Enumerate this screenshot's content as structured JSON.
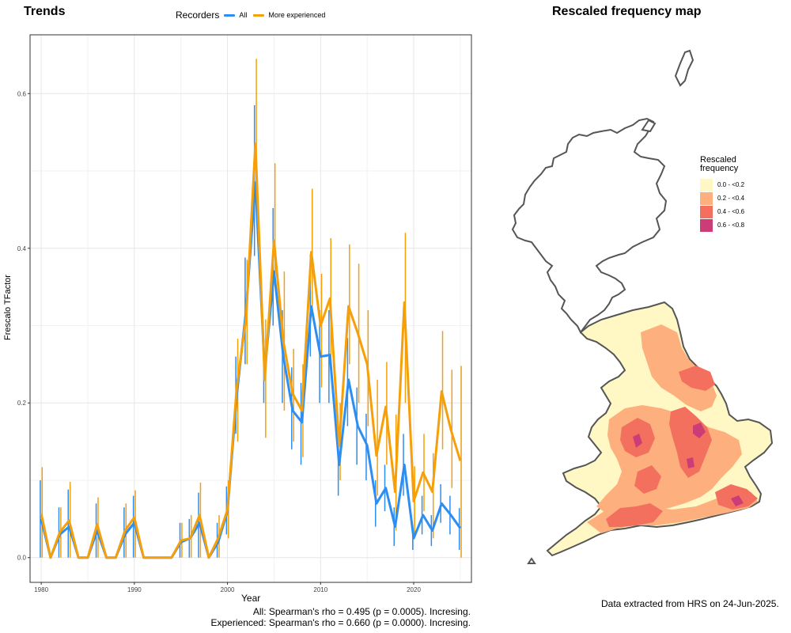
{
  "titles": {
    "left": "Trends",
    "right": "Rescaled frequency map"
  },
  "legend": {
    "title": "Recorders",
    "items": [
      {
        "label": "All",
        "color": "#2e8ef0"
      },
      {
        "label": "More experienced",
        "color": "#f5a00a"
      }
    ]
  },
  "axes": {
    "xlabel": "Year",
    "ylabel": "Frescalo TFactor"
  },
  "stats": {
    "all": "All: Spearman's rho = 0.495 (p = 0.0005). Incresing.",
    "experienced": "Experienced: Spearman's rho = 0.660 (p = 0.0000). Incresing."
  },
  "source_note": "Data extracted from HRS on 24-Jun-2025.",
  "map_legend": {
    "title": "Rescaled frequency",
    "items": [
      {
        "label": "0.0 - <0.2",
        "color": "#fff8c4"
      },
      {
        "label": "0.2 - <0.4",
        "color": "#fdb07e"
      },
      {
        "label": "0.4 - <0.6",
        "color": "#f3705f"
      },
      {
        "label": "0.6 - <0.8",
        "color": "#cc3d78"
      }
    ]
  },
  "chart_data": {
    "type": "line",
    "xlabel": "Year",
    "ylabel": "Frescalo TFactor",
    "xlim": [
      1978.8,
      2026.2
    ],
    "ylim": [
      -0.032,
      0.676
    ],
    "xticks": [
      1980,
      1990,
      2000,
      2010,
      2020
    ],
    "yticks": [
      0.0,
      0.2,
      0.4,
      0.6
    ],
    "ytick_labels": [
      "0.0",
      "0.2",
      "0.4",
      "0.6"
    ],
    "grid": true,
    "legend_position": "top",
    "x": [
      1980,
      1981,
      1982,
      1983,
      1984,
      1985,
      1986,
      1987,
      1988,
      1989,
      1990,
      1991,
      1992,
      1993,
      1994,
      1995,
      1996,
      1997,
      1998,
      1999,
      2000,
      2001,
      2002,
      2003,
      2004,
      2005,
      2006,
      2007,
      2008,
      2009,
      2010,
      2011,
      2012,
      2013,
      2014,
      2015,
      2016,
      2017,
      2018,
      2019,
      2020,
      2021,
      2022,
      2023,
      2024,
      2025
    ],
    "series": [
      {
        "name": "All",
        "color": "#2e8ef0",
        "values": [
          0.05,
          0.0,
          0.03,
          0.04,
          0.0,
          0.0,
          0.035,
          0.0,
          0.0,
          0.03,
          0.045,
          0.0,
          0.0,
          0.0,
          0.0,
          0.02,
          0.025,
          0.045,
          0.0,
          0.02,
          0.06,
          0.21,
          0.32,
          0.485,
          0.24,
          0.37,
          0.26,
          0.19,
          0.175,
          0.325,
          0.26,
          0.262,
          0.12,
          0.23,
          0.17,
          0.145,
          0.07,
          0.09,
          0.04,
          0.12,
          0.025,
          0.055,
          0.035,
          0.07,
          0.055,
          0.038
        ],
        "ci_low": [
          0.0,
          0.0,
          0.0,
          0.0,
          0.0,
          0.0,
          0.0,
          0.0,
          0.0,
          0.0,
          0.0,
          0.0,
          0.0,
          0.0,
          0.0,
          0.0,
          0.0,
          0.0,
          0.0,
          0.0,
          0.03,
          0.16,
          0.25,
          0.39,
          0.2,
          0.3,
          0.2,
          0.14,
          0.12,
          0.26,
          0.2,
          0.2,
          0.08,
          0.17,
          0.12,
          0.1,
          0.04,
          0.06,
          0.015,
          0.08,
          0.01,
          0.03,
          0.015,
          0.045,
          0.03,
          0.01
        ],
        "ci_high": [
          0.1,
          0.0,
          0.065,
          0.088,
          0.0,
          0.0,
          0.07,
          0.0,
          0.0,
          0.065,
          0.08,
          0.0,
          0.0,
          0.0,
          0.0,
          0.045,
          0.05,
          0.084,
          0.0,
          0.045,
          0.092,
          0.26,
          0.388,
          0.585,
          0.28,
          0.452,
          0.32,
          0.246,
          0.226,
          0.392,
          0.32,
          0.32,
          0.16,
          0.284,
          0.22,
          0.186,
          0.1,
          0.12,
          0.065,
          0.16,
          0.04,
          0.08,
          0.055,
          0.095,
          0.08,
          0.064
        ]
      },
      {
        "name": "More experienced",
        "color": "#f5a00a",
        "values": [
          0.057,
          0.0,
          0.033,
          0.048,
          0.0,
          0.0,
          0.043,
          0.0,
          0.0,
          0.035,
          0.052,
          0.0,
          0.0,
          0.0,
          0.0,
          0.022,
          0.025,
          0.055,
          0.0,
          0.025,
          0.062,
          0.22,
          0.31,
          0.535,
          0.23,
          0.41,
          0.28,
          0.212,
          0.19,
          0.395,
          0.3,
          0.335,
          0.145,
          0.325,
          0.29,
          0.25,
          0.132,
          0.195,
          0.085,
          0.33,
          0.073,
          0.11,
          0.085,
          0.215,
          0.165,
          0.125
        ],
        "ci_low": [
          0.0,
          0.0,
          0.0,
          0.0,
          0.0,
          0.0,
          0.0,
          0.0,
          0.0,
          0.0,
          0.0,
          0.0,
          0.0,
          0.0,
          0.0,
          0.0,
          0.0,
          0.0,
          0.0,
          0.0,
          0.025,
          0.15,
          0.25,
          0.45,
          0.155,
          0.35,
          0.19,
          0.15,
          0.13,
          0.32,
          0.22,
          0.25,
          0.1,
          0.25,
          0.2,
          0.17,
          0.08,
          0.12,
          0.035,
          0.2,
          0.03,
          0.06,
          0.025,
          0.14,
          0.09,
          0.0
        ],
        "ci_high": [
          0.117,
          0.0,
          0.065,
          0.098,
          0.0,
          0.0,
          0.078,
          0.0,
          0.0,
          0.07,
          0.087,
          0.0,
          0.0,
          0.0,
          0.0,
          0.045,
          0.055,
          0.097,
          0.0,
          0.055,
          0.1,
          0.283,
          0.385,
          0.645,
          0.308,
          0.51,
          0.37,
          0.27,
          0.25,
          0.477,
          0.367,
          0.413,
          0.2,
          0.405,
          0.38,
          0.32,
          0.23,
          0.253,
          0.185,
          0.42,
          0.118,
          0.16,
          0.135,
          0.293,
          0.243,
          0.248
        ]
      }
    ]
  }
}
